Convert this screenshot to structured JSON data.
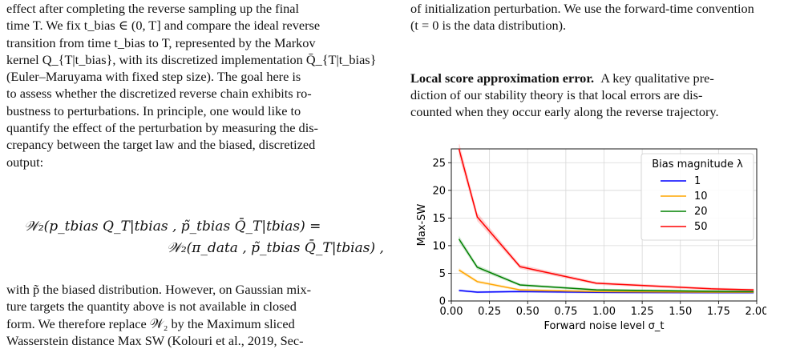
{
  "left": {
    "lines": [
      "effect after completing the reverse sampling up the final",
      "time T. We fix t_bias ∈ (0, T] and compare the ideal reverse",
      "transition from time t_bias to T, represented by the Markov",
      "kernel Q_{T|t_bias}, with its discretized implementation Q̄_{T|t_bias}",
      "(Euler–Maruyama with fixed step size). The goal here is",
      "to assess whether the discretized reverse chain exhibits ro-",
      "bustness to perturbations. In principle, one would like to",
      "quantify the effect of the perturbation by measuring the dis-",
      "crepancy between the target law and the biased, discretized",
      "output:"
    ],
    "equation_line1": "𝒲₂(p_tbias Q_T|tbias , p̃_tbias Q̄_T|tbias) =",
    "equation_line2": "𝒲₂(π_data , p̃_tbias Q̄_T|tbias) ,",
    "after_lines": [
      "with p̃ the biased distribution. However, on Gaussian mix-",
      "ture targets the quantity above is not available in closed",
      "form. We therefore replace 𝒲₂ by the Maximum sliced",
      "Wasserstein distance Max SW (Kolouri et al., 2019, Sec-"
    ]
  },
  "right": {
    "top_lines": [
      "of initialization perturbation. We use the forward-time convention",
      "(t = 0 is the data distribution)."
    ],
    "section_title": "Local score approximation error.",
    "section_lines": [
      "A key qualitative pre-",
      "diction of our stability theory is that local errors are dis-",
      "counted when they occur early along the reverse trajectory."
    ]
  },
  "chart_data": {
    "type": "line",
    "xlabel": "Forward noise level σ_t",
    "ylabel": "Max-SW",
    "xlim": [
      0,
      2
    ],
    "ylim": [
      0,
      27.5
    ],
    "xticks": [
      "0.00",
      "0.25",
      "0.50",
      "0.75",
      "1.00",
      "1.25",
      "1.50",
      "1.75",
      "2.00"
    ],
    "yticks": [
      "0",
      "5",
      "10",
      "15",
      "20",
      "25"
    ],
    "grid": true,
    "legend": {
      "title": "Bias magnitude λ",
      "placement": "top-right"
    },
    "x": [
      0.05,
      0.17,
      0.45,
      0.95,
      1.7,
      1.98
    ],
    "series": [
      {
        "name": "1",
        "color": "#0000ff",
        "values": [
          1.9,
          1.6,
          1.7,
          1.55,
          1.5,
          1.5
        ]
      },
      {
        "name": "10",
        "color": "#ffa500",
        "values": [
          5.6,
          3.5,
          2.0,
          1.7,
          1.6,
          1.6
        ]
      },
      {
        "name": "20",
        "color": "#008000",
        "values": [
          11.2,
          6.1,
          2.9,
          2.0,
          1.75,
          1.7
        ]
      },
      {
        "name": "50",
        "color": "#ff0000",
        "values": [
          27.5,
          15.2,
          6.2,
          3.2,
          2.2,
          2.0
        ]
      }
    ]
  }
}
